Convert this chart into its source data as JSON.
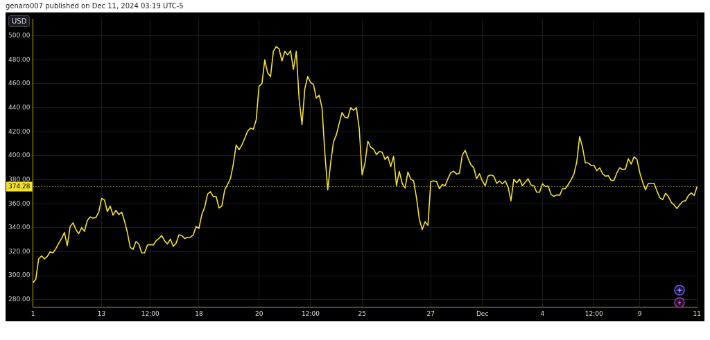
{
  "chart_data": {
    "type": "line",
    "ylabel": "USD",
    "annotations": [
      "genaro007 published on Dec 11, 2024 03:19 UTC-5"
    ],
    "categories": [
      "1",
      null,
      null,
      null,
      null,
      null,
      null,
      null,
      null,
      null,
      null,
      null,
      null,
      null,
      null,
      null,
      null,
      null,
      null,
      null,
      null,
      null,
      null,
      null,
      "13",
      null,
      null,
      null,
      null,
      null,
      null,
      null,
      null,
      null,
      null,
      null,
      null,
      null,
      null,
      null,
      null,
      "12:00",
      null,
      null,
      null,
      null,
      null,
      null,
      null,
      null,
      null,
      null,
      null,
      null,
      null,
      null,
      null,
      null,
      "18",
      null,
      null,
      null,
      null,
      null,
      null,
      null,
      null,
      null,
      null,
      null,
      null,
      null,
      null,
      null,
      null,
      null,
      null,
      null,
      null,
      "20",
      null,
      null,
      null,
      null,
      null,
      null,
      null,
      null,
      null,
      null,
      null,
      null,
      null,
      null,
      null,
      null,
      null,
      "12:00",
      null,
      null,
      null,
      null,
      null,
      null,
      null,
      null,
      null,
      null,
      null,
      null,
      null,
      null,
      null,
      null,
      null,
      "25",
      null,
      null,
      null,
      null,
      null,
      null,
      null,
      null,
      null,
      null,
      null,
      null,
      null,
      null,
      null,
      null,
      null,
      null,
      null,
      null,
      null,
      null,
      null,
      "27",
      null,
      null,
      null,
      null,
      null,
      null,
      null,
      null,
      null,
      null,
      null,
      null,
      null,
      null,
      null,
      null,
      null,
      "Dec",
      null,
      null,
      null,
      null,
      null,
      null,
      null,
      null,
      null,
      null,
      null,
      null,
      null,
      null,
      null,
      null,
      null,
      null,
      null,
      null,
      "4",
      null,
      null,
      null,
      null,
      null,
      null,
      null,
      null,
      null,
      null,
      null,
      null,
      null,
      null,
      null,
      null,
      null,
      "12:00",
      null,
      null,
      null,
      null,
      null,
      null,
      null,
      null,
      null,
      null,
      null,
      null,
      null,
      null,
      null,
      "9",
      null,
      null,
      null,
      null,
      null,
      null,
      null,
      null,
      null,
      null,
      null,
      null,
      null,
      null,
      null,
      null,
      null,
      null,
      null,
      "11"
    ],
    "series": [
      {
        "color": "#f2e22c",
        "values": [
          294,
          297,
          314,
          316.5,
          314,
          316,
          320,
          319,
          322.5,
          327,
          331,
          336,
          325,
          341,
          344,
          338.5,
          335,
          340,
          337,
          346,
          349,
          348,
          348.5,
          353,
          364.5,
          363,
          353.5,
          358,
          350.5,
          354.5,
          351,
          353,
          345.5,
          336,
          323.5,
          322,
          328.5,
          326.5,
          319,
          319,
          325.5,
          326,
          325.5,
          329,
          331,
          333.5,
          329,
          326.5,
          330.5,
          324.5,
          327,
          334,
          333.5,
          331,
          332,
          332,
          334,
          341,
          339.5,
          351,
          357,
          368,
          370,
          366,
          366,
          356.5,
          358,
          371.5,
          376,
          381,
          393,
          409,
          405,
          409,
          414.5,
          420.5,
          423,
          422,
          430,
          458,
          460,
          480,
          469,
          466,
          487,
          491,
          489,
          479,
          487,
          484,
          487.5,
          472,
          487,
          447,
          426,
          456,
          466,
          461,
          459.5,
          448,
          450.5,
          440,
          401.5,
          371.5,
          394,
          411.5,
          417.5,
          427,
          436,
          432,
          431.5,
          440,
          438,
          440,
          422.5,
          384,
          394,
          412,
          407,
          405.5,
          401,
          403.5,
          403,
          397,
          399.5,
          391,
          399.5,
          375,
          387,
          377,
          373,
          386.5,
          380.5,
          379,
          365,
          347,
          338.5,
          345,
          342,
          378.5,
          379,
          378.5,
          372.5,
          376,
          375,
          381,
          386,
          387,
          384.7,
          385.5,
          400.5,
          404.5,
          398,
          392.5,
          390,
          381,
          385,
          379,
          375,
          383,
          384,
          383,
          377,
          379,
          376.6,
          379,
          374,
          362.5,
          380.5,
          377.5,
          380.5,
          375,
          378,
          380.8,
          375.7,
          375,
          369.6,
          369.6,
          376.6,
          374.4,
          374.7,
          367.8,
          366,
          367.4,
          367,
          372.5,
          372.5,
          376,
          380,
          384.7,
          395,
          416,
          407,
          394,
          394,
          392,
          392,
          387.5,
          390,
          385,
          383,
          383.4,
          379.4,
          379.6,
          385.7,
          390,
          388.5,
          389,
          397.5,
          393,
          399,
          397,
          386,
          378,
          371.5,
          377,
          377,
          377,
          370.6,
          365,
          363.4,
          368.7,
          366,
          361,
          359,
          356,
          359.3,
          362,
          362.5,
          366.8,
          369,
          366.8,
          374.3
        ]
      }
    ],
    "ylim": [
      274,
      514
    ],
    "yticks": [
      {
        "value": 280,
        "label": "280.00"
      },
      {
        "value": 300,
        "label": "300.00"
      },
      {
        "value": 320,
        "label": "320.00"
      },
      {
        "value": 340,
        "label": "340.00"
      },
      {
        "value": 360,
        "label": "360.00"
      },
      {
        "value": 380,
        "label": "380.00"
      },
      {
        "value": 400,
        "label": "400.00"
      },
      {
        "value": 420,
        "label": "420.00"
      },
      {
        "value": 440,
        "label": "440.00"
      },
      {
        "value": 460,
        "label": "460.00"
      },
      {
        "value": 480,
        "label": "480.00"
      },
      {
        "value": 500,
        "label": "500.00"
      }
    ],
    "ref_lines": [
      {
        "axis": "y",
        "value": 374.28,
        "label": "374.28",
        "color": "#f2e22c",
        "line_style": "dotted"
      }
    ],
    "grid": true,
    "marker": "none",
    "line_style": "solid"
  }
}
